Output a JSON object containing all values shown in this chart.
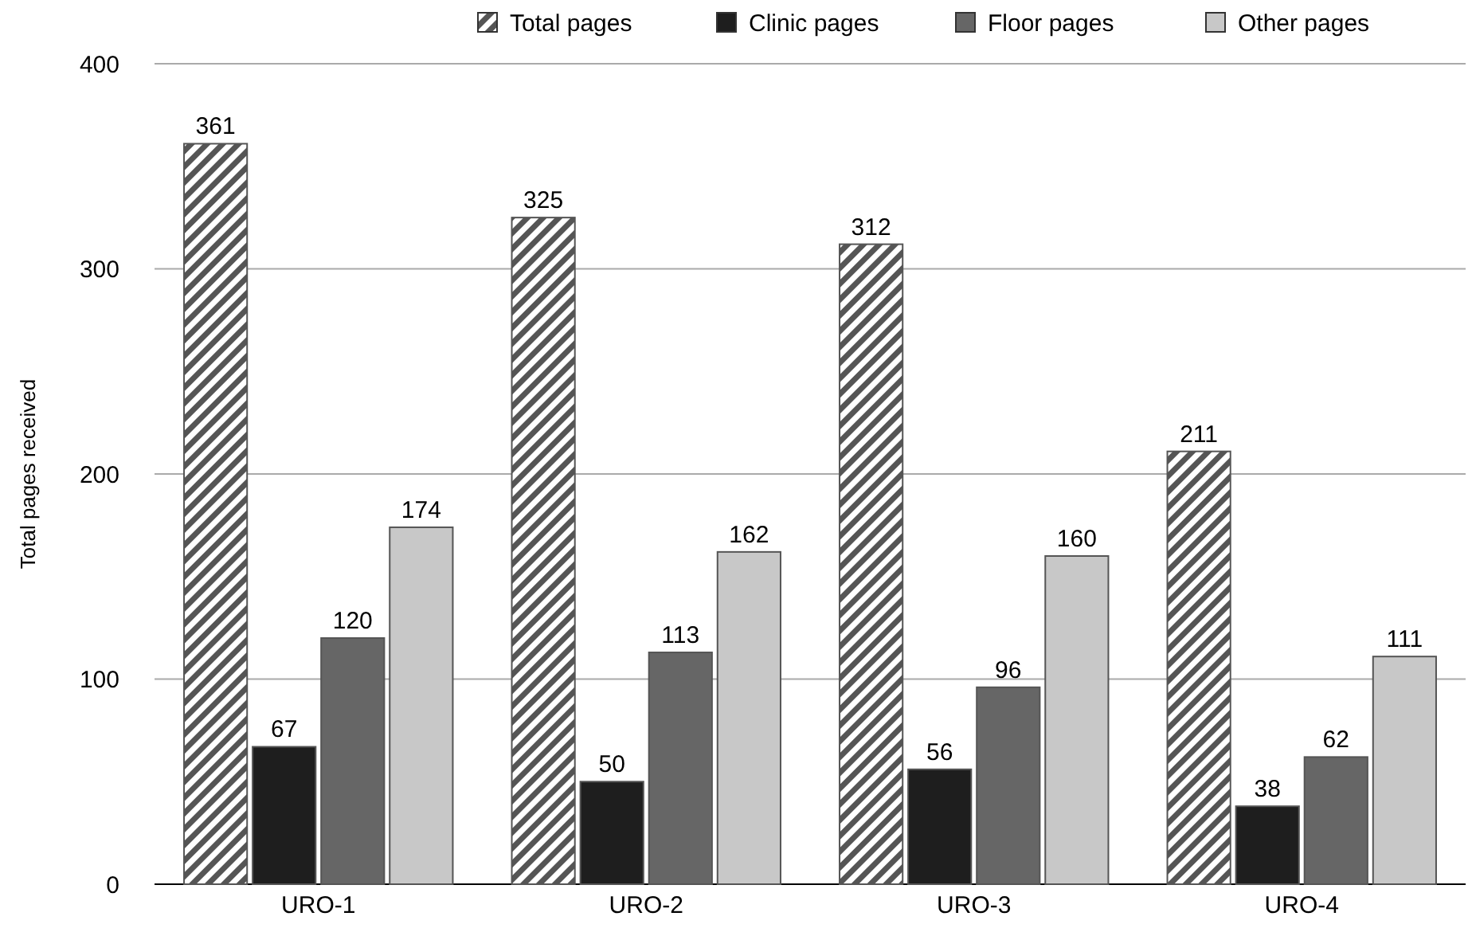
{
  "chart_data": {
    "type": "bar",
    "ylabel": "Total pages received",
    "categories": [
      "URO-1",
      "URO-2",
      "URO-3",
      "URO-4"
    ],
    "series": [
      {
        "name": "Total pages",
        "color": "#555555",
        "values": [
          361,
          325,
          312,
          211
        ]
      },
      {
        "name": "Clinic pages",
        "color": "#1e1e1e",
        "values": [
          67,
          50,
          56,
          38
        ]
      },
      {
        "name": "Floor pages",
        "color": "#666666",
        "values": [
          120,
          113,
          96,
          62
        ]
      },
      {
        "name": "Other pages",
        "color": "#c8c8c8",
        "values": [
          174,
          162,
          160,
          111
        ]
      }
    ],
    "ylim": [
      0,
      400
    ],
    "yticks": [
      0,
      100,
      200,
      300,
      400
    ],
    "grid": "y",
    "legend": "top right",
    "data_labels": true
  }
}
